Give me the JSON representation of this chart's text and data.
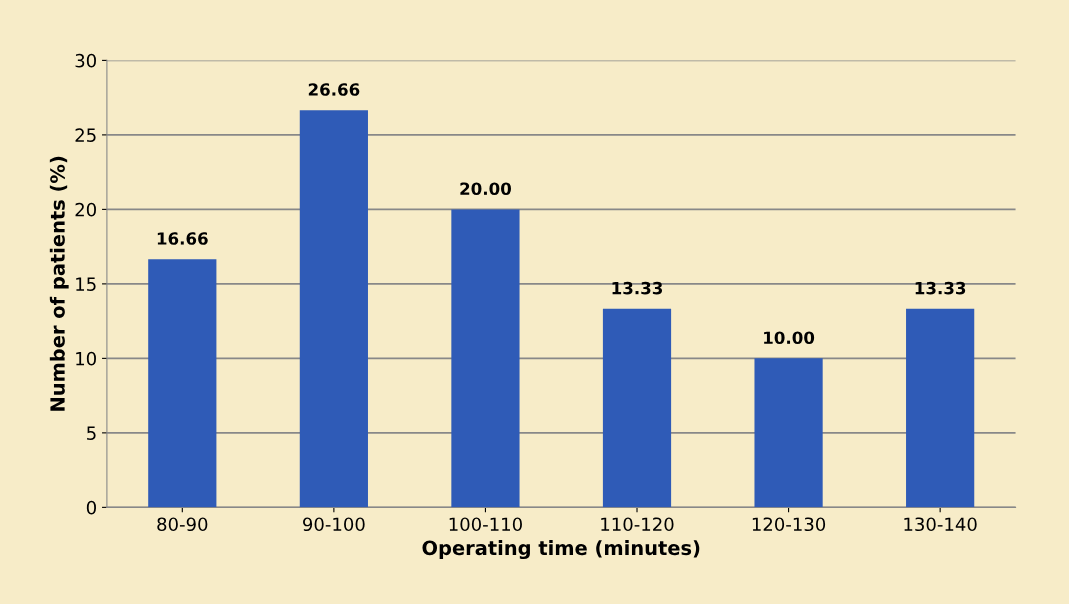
{
  "chart_data": {
    "type": "bar",
    "xlabel": "Operating time (minutes)",
    "ylabel": "Number of patients (%)",
    "categories": [
      "80-90",
      "90-100",
      "100-110",
      "110-120",
      "120-130",
      "130-140"
    ],
    "values": [
      16.66,
      26.66,
      20.0,
      13.33,
      10.0,
      13.33
    ],
    "value_labels": [
      "16.66",
      "26.66",
      "20.00",
      "13.33",
      "10.00",
      "13.33"
    ],
    "color": "#2f5bb7",
    "ylim": [
      0,
      30
    ],
    "yticks": [
      0,
      5,
      10,
      15,
      20,
      25,
      30
    ],
    "grid": "y"
  }
}
